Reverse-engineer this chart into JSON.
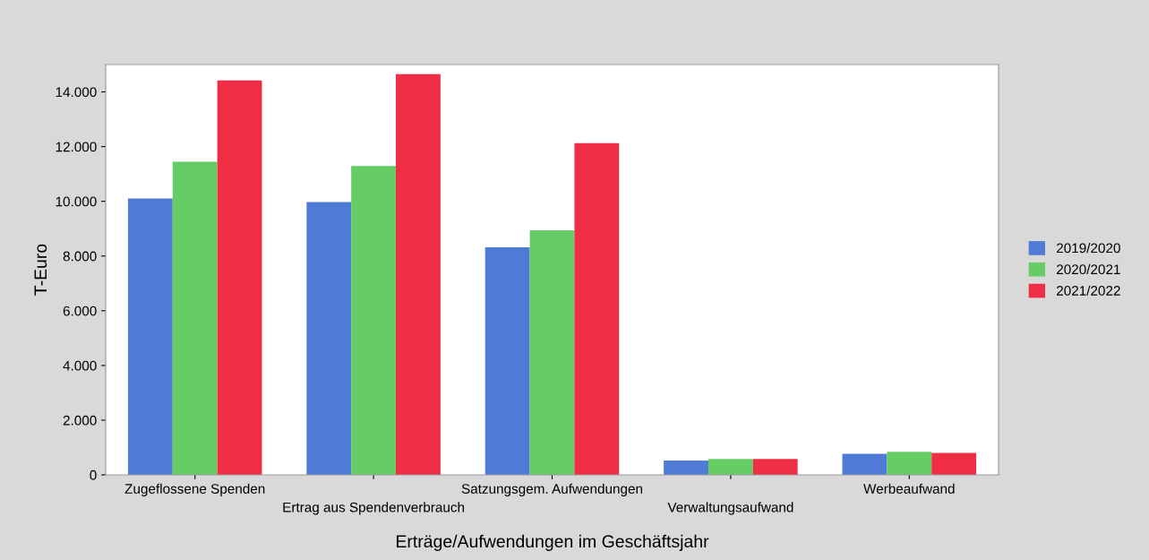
{
  "chart_data": {
    "type": "bar",
    "xlabel": "Erträge/Aufwendungen im Geschäftsjahr",
    "ylabel": "T-Euro",
    "categories": [
      "Zugeflossene Spenden",
      "Ertrag aus Spendenverbrauch",
      "Satzungsgem. Aufwendungen",
      "Verwaltungsaufwand",
      "Werbeaufwand"
    ],
    "series": [
      {
        "name": "2019/2020",
        "color": "#4f7bd6",
        "values": [
          10100,
          9970,
          8320,
          520,
          770
        ]
      },
      {
        "name": "2020/2021",
        "color": "#66cd66",
        "values": [
          11450,
          11290,
          8940,
          580,
          840
        ]
      },
      {
        "name": "2021/2022",
        "color": "#ef2d44",
        "values": [
          14420,
          14650,
          12130,
          580,
          800
        ]
      }
    ],
    "ylim": [
      0,
      15000
    ],
    "yticks": [
      0,
      {
        "value": 2000,
        "label": "2.000"
      },
      {
        "value": 4000,
        "label": "4.000"
      },
      {
        "value": 6000,
        "label": "6.000"
      },
      {
        "value": 8000,
        "label": "8.000"
      },
      {
        "value": 10000,
        "label": "10.000"
      },
      {
        "value": 12000,
        "label": "12.000"
      },
      {
        "value": 14000,
        "label": "14.000"
      }
    ],
    "grid": false,
    "legend": "right"
  }
}
